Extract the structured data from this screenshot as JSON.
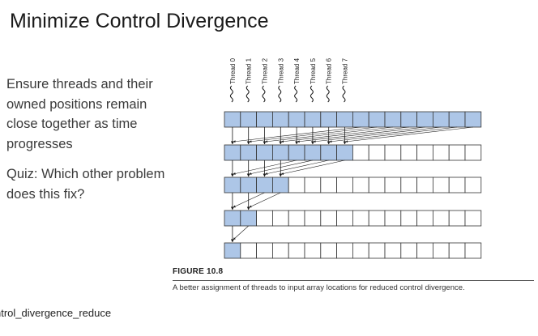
{
  "slide": {
    "title": "Minimize Control Divergence",
    "bullets": [
      "Ensure threads and their owned positions remain close together as time progresses",
      "Quiz: Which other problem does this fix?"
    ],
    "footer_text": "ntrol_divergence_reduce"
  },
  "figure": {
    "threads": [
      "Thread 0",
      "Thread 1",
      "Thread 2",
      "Thread 3",
      "Thread 4",
      "Thread 5",
      "Thread 6",
      "Thread 7"
    ],
    "cells_per_row": 16,
    "active_cells_per_row": [
      16,
      8,
      4,
      2,
      1
    ],
    "caption_label": "FIGURE 10.8",
    "caption_text": "A better assignment of threads to input array locations for reduced control divergence."
  },
  "colors": {
    "active_cell": "#adc6e7",
    "cell_border": "#333333",
    "line": "#1a1a1a"
  }
}
